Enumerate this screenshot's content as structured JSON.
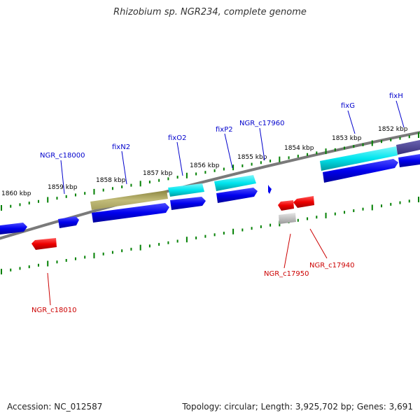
{
  "title": "Rhizobium sp. NGR234, complete genome",
  "footer": {
    "accession": "Accession: NC_012587",
    "summary": "Topology: circular; Length: 3,925,702 bp; Genes: 3,691"
  },
  "colors": {
    "backbone": "#808080",
    "forward_gene": "#0000ee",
    "reverse_gene": "#ee0000",
    "fix_cds": "#00e5ee",
    "fixN2_cds": "#bdb76b",
    "fixH_cds": "#483d8b",
    "pseudo_gene": "#c0c0c0",
    "tick": "#008000",
    "label_forward": "#0000cc",
    "label_reverse": "#cc0000",
    "leader_forward": "#0000cc",
    "leader_reverse": "#cc0000"
  },
  "scale_labels": [
    "1852 kbp",
    "1853 kbp",
    "1854 kbp",
    "1855 kbp",
    "1856 kbp",
    "1857 kbp",
    "1858 kbp",
    "1859 kbp",
    "1860 kbp"
  ],
  "gene_labels": {
    "forward": [
      "fixH",
      "fixG",
      "NGR_c17960",
      "fixP2",
      "fixO2",
      "fixN2",
      "NGR_c18000"
    ],
    "reverse": [
      "NGR_c17940",
      "NGR_c17950",
      "NGR_c18010"
    ]
  }
}
